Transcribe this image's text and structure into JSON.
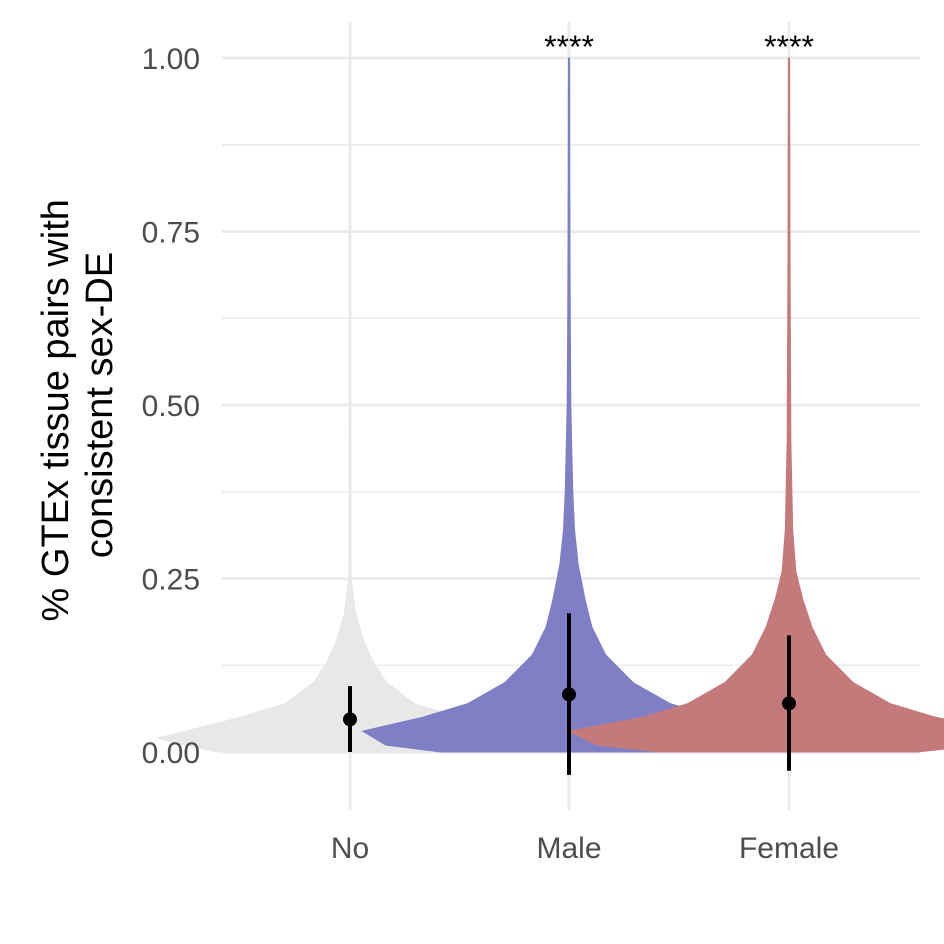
{
  "chart_data": {
    "type": "violin",
    "title": "",
    "xlabel": "",
    "ylabel": [
      "% GTEx tissue pairs with",
      "consistent sex-DE"
    ],
    "categories": [
      "No",
      "Male",
      "Female"
    ],
    "y_ticks": [
      "0.00",
      "0.25",
      "0.50",
      "0.75",
      "1.00"
    ],
    "ylim": [
      -0.08,
      1.05
    ],
    "grid": true,
    "legend": "none",
    "colors": {
      "No": "#e8e8e8",
      "Male": "#7f7fc6",
      "Female": "#c47a7a"
    },
    "series": [
      {
        "category": "No",
        "mean": 0.047,
        "sd_low": 0.0,
        "sd_high": 0.095,
        "significance": "",
        "density": [
          [
            0.0,
            0.29
          ],
          [
            0.01,
            0.36
          ],
          [
            0.02,
            0.42
          ],
          [
            0.03,
            0.36
          ],
          [
            0.05,
            0.24
          ],
          [
            0.07,
            0.14
          ],
          [
            0.1,
            0.08
          ],
          [
            0.13,
            0.05
          ],
          [
            0.16,
            0.03
          ],
          [
            0.2,
            0.012
          ],
          [
            0.25,
            0.003
          ],
          [
            0.35,
            0.0015
          ],
          [
            0.5,
            0.001
          ],
          [
            0.75,
            0.001
          ],
          [
            1.0,
            0.001
          ]
        ]
      },
      {
        "category": "Male",
        "mean": 0.083,
        "sd_low": -0.033,
        "sd_high": 0.2,
        "significance": "****",
        "density": [
          [
            0.0,
            0.28
          ],
          [
            0.01,
            0.4
          ],
          [
            0.03,
            0.45
          ],
          [
            0.05,
            0.32
          ],
          [
            0.07,
            0.22
          ],
          [
            0.1,
            0.14
          ],
          [
            0.14,
            0.08
          ],
          [
            0.18,
            0.05
          ],
          [
            0.22,
            0.035
          ],
          [
            0.27,
            0.02
          ],
          [
            0.32,
            0.012
          ],
          [
            0.38,
            0.008
          ],
          [
            0.5,
            0.004
          ],
          [
            0.6,
            0.003
          ],
          [
            0.75,
            0.002
          ],
          [
            1.0,
            0.001
          ]
        ]
      },
      {
        "category": "Female",
        "mean": 0.07,
        "sd_low": -0.027,
        "sd_high": 0.168,
        "significance": "****",
        "density": [
          [
            0.0,
            0.28
          ],
          [
            0.01,
            0.42
          ],
          [
            0.03,
            0.48
          ],
          [
            0.05,
            0.32
          ],
          [
            0.07,
            0.22
          ],
          [
            0.1,
            0.14
          ],
          [
            0.14,
            0.08
          ],
          [
            0.18,
            0.05
          ],
          [
            0.22,
            0.03
          ],
          [
            0.26,
            0.015
          ],
          [
            0.32,
            0.008
          ],
          [
            0.45,
            0.004
          ],
          [
            0.6,
            0.003
          ],
          [
            0.75,
            0.002
          ],
          [
            1.0,
            0.001
          ]
        ]
      }
    ]
  }
}
